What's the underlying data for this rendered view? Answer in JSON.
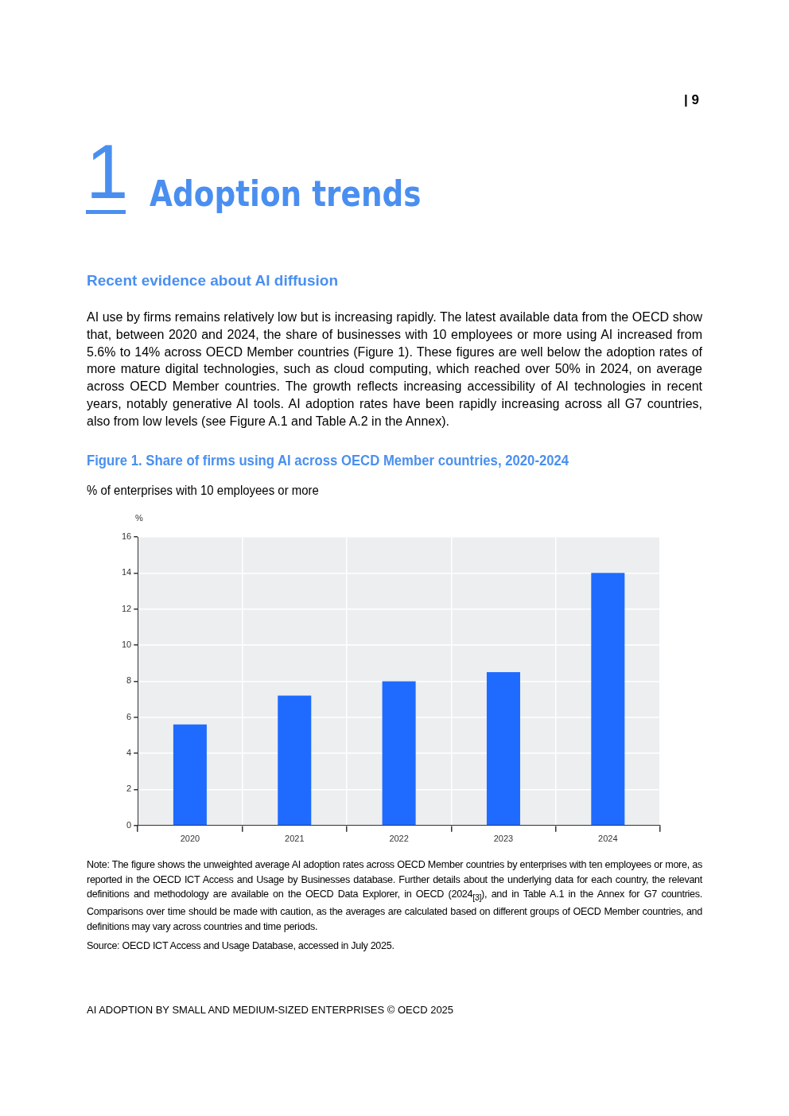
{
  "chart_data": {
    "type": "bar",
    "title": "Figure 1. Share of firms using AI across OECD Member countries, 2020-2024",
    "subtitle": "% of enterprises with 10 employees or more",
    "ylabel": "%",
    "categories": [
      "2020",
      "2021",
      "2022",
      "2023",
      "2024"
    ],
    "values": [
      5.6,
      7.2,
      8.0,
      8.5,
      14.0
    ],
    "color": "#1f6bff",
    "ylim": [
      0,
      16
    ],
    "yticks": [
      0,
      2,
      4,
      6,
      8,
      10,
      12,
      14,
      16
    ],
    "grid": true,
    "legend": false,
    "annotations": [
      "| 9",
      "1",
      "Adoption trends",
      "Recent evidence about AI diffusion",
      "AI use by firms remains relatively low but is increasing rapidly. The latest available data from the OECD show that, between 2020 and 2024, the share of businesses with 10 employees or more using AI increased from 5.6% to 14% across OECD Member countries (Figure 1). These figures are well below the adoption rates of more mature digital technologies, such as cloud computing, which reached over 50% in 2024, on average across OECD Member countries. The growth reflects increasing accessibility of AI technologies in recent years, notably generative AI tools. AI adoption rates have been rapidly increasing across all G7 countries, also from low levels (see Figure A.1 and Table A.2 in the Annex).",
      "Note: The figure shows the unweighted average AI adoption rates across OECD Member countries by enterprises with ten employees or more, as reported in the OECD ICT Access and Usage by Businesses database. Further details about the underlying data for each country, the relevant definitions and methodology are available on the OECD Data Explorer, in OECD (2024$_{[3]}$), and in Table A.1 in the Annex for G7 countries. Comparisons over time should be made with caution, as the averages are calculated based on different groups of OECD Member countries, and definitions may vary across countries and time periods.",
      "Source: OECD ICT Access and Usage Database, accessed in July 2025.",
      "AI ADOPTION BY SMALL AND MEDIUM-SIZED ENTERPRISES © OECD 2025"
    ]
  }
}
